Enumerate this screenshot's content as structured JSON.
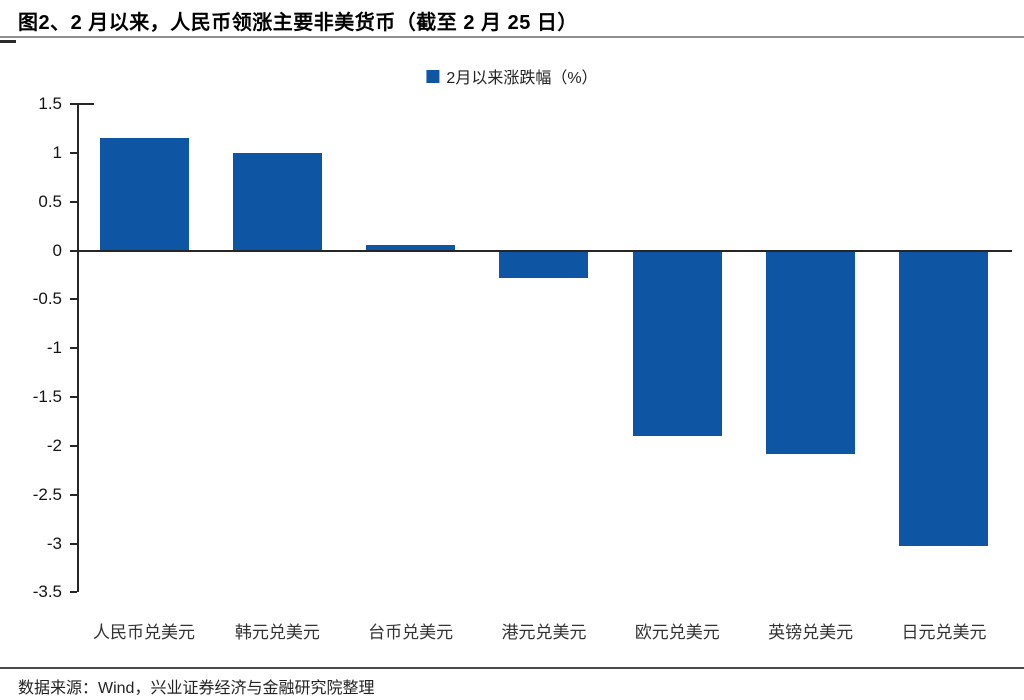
{
  "title": "图2、2 月以来，人民币领涨主要非美货币（截至 2 月 25 日）",
  "legend": {
    "label": "2月以来涨跌幅（%）"
  },
  "source": "数据来源：Wind，兴业证券经济与金融研究院整理",
  "colors": {
    "bar": "#0E55A3",
    "axis": "#262626"
  },
  "chart_data": {
    "type": "bar",
    "title": "",
    "xlabel": "",
    "ylabel": "",
    "categories": [
      "人民币兑美元",
      "韩元兑美元",
      "台币兑美元",
      "港元兑美元",
      "欧元兑美元",
      "英镑兑美元",
      "日元兑美元"
    ],
    "series": [
      {
        "name": "2月以来涨跌幅（%）",
        "values": [
          1.15,
          1.0,
          0.06,
          -0.28,
          -1.9,
          -2.08,
          -3.03
        ]
      }
    ],
    "ylim": [
      -3.5,
      1.5
    ],
    "yticks": [
      1.5,
      1,
      0.5,
      0,
      -0.5,
      -1,
      -1.5,
      -2,
      -2.5,
      -3,
      -3.5
    ],
    "ytick_labels": [
      "1.5",
      "1",
      "0.5",
      "0",
      "-0.5",
      "-1",
      "-1.5",
      "-2",
      "-2.5",
      "-3",
      "-3.5"
    ],
    "grid": false,
    "legend_position": "top-center",
    "bar_color": "#0E55A3"
  }
}
